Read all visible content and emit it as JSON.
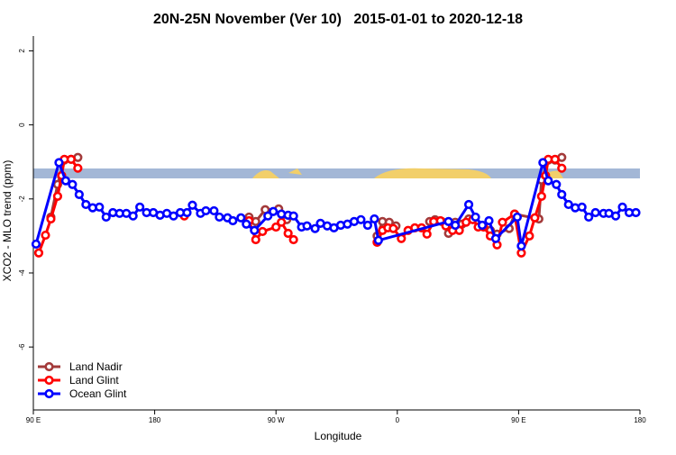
{
  "chart_data": {
    "type": "line",
    "title": "20N-25N November (Ver 10)   2015-01-01 to 2020-12-18",
    "x_label": "Longitude",
    "y_label": "XCO2 - MLO trend (ppm)",
    "xlim": [
      90,
      540
    ],
    "xticks": [
      {
        "value": 90,
        "label": "90 E"
      },
      {
        "value": 180,
        "label": "180"
      },
      {
        "value": 270,
        "label": "90 W"
      },
      {
        "value": 360,
        "label": "0"
      },
      {
        "value": 450,
        "label": "90 E"
      },
      {
        "value": 540,
        "label": "180"
      }
    ],
    "ylim": [
      -7.7,
      2.4
    ],
    "yticks": [
      -6,
      -4,
      -2,
      0,
      2
    ],
    "legend": "bottom-left",
    "series": [
      {
        "name": "Land Nadir",
        "color": "#a33a3a",
        "x": [
          103,
          108,
          113,
          118,
          123,
          160,
          250,
          255,
          262,
          272,
          278,
          300,
          345,
          349,
          354,
          359,
          370,
          384,
          388,
          393,
          398,
          403,
          408,
          413,
          420,
          429,
          434,
          443,
          447,
          465,
          467,
          472,
          477,
          482
        ],
        "values": [
          -2.49,
          -1.61,
          -0.95,
          -0.93,
          -0.88,
          null,
          -2.49,
          -2.61,
          -2.29,
          -2.27,
          -2.56,
          null,
          -3.0,
          -2.61,
          -2.63,
          -2.73,
          null,
          -2.61,
          -2.56,
          -2.61,
          -2.93,
          -2.63,
          -2.68,
          -2.54,
          null,
          -2.85,
          -2.95,
          -2.8,
          -2.41,
          -2.54,
          -1.49,
          -0.95,
          -0.95,
          -0.88
        ]
      },
      {
        "name": "Land Glint",
        "color": "#ff0000",
        "x": [
          94,
          99,
          103,
          108,
          111,
          113,
          118,
          123,
          160,
          202,
          230,
          250,
          255,
          260,
          270,
          274,
          279,
          283,
          300,
          345,
          349,
          353,
          357,
          363,
          368,
          373,
          378,
          382,
          387,
          392,
          396,
          401,
          406,
          411,
          416,
          420,
          424,
          429,
          434,
          438,
          447,
          452,
          458,
          462,
          467,
          470,
          472,
          477,
          482
        ],
        "values": [
          -3.46,
          -2.98,
          -2.54,
          -1.93,
          -1.37,
          -0.93,
          -0.93,
          -1.17,
          null,
          -2.46,
          null,
          -2.59,
          -3.1,
          -2.88,
          -2.76,
          -2.63,
          -2.93,
          -3.1,
          null,
          -3.17,
          -2.85,
          -2.78,
          -2.8,
          -3.07,
          -2.85,
          -2.78,
          -2.78,
          -2.95,
          -2.61,
          -2.59,
          -2.73,
          -2.85,
          -2.85,
          -2.63,
          -2.56,
          -2.76,
          -2.76,
          -3.0,
          -3.24,
          -2.63,
          -2.41,
          -3.46,
          -3.0,
          -2.51,
          -1.93,
          -1.37,
          -0.93,
          -0.93,
          -1.17
        ]
      },
      {
        "name": "Ocean Glint",
        "color": "#0000ff",
        "x": [
          92,
          109,
          114,
          119,
          124,
          129,
          134,
          139,
          144,
          149,
          154,
          159,
          164,
          169,
          174,
          179,
          184,
          189,
          194,
          199,
          204,
          208,
          214,
          218,
          224,
          228,
          234,
          238,
          244,
          248,
          254,
          264,
          268,
          274,
          279,
          283,
          289,
          293,
          299,
          303,
          308,
          313,
          318,
          323,
          328,
          333,
          338,
          343,
          346,
          398,
          403,
          413,
          418,
          423,
          428,
          433,
          449,
          452,
          468,
          472,
          478,
          482,
          487,
          492,
          497,
          502,
          507,
          513,
          517,
          522,
          527,
          532,
          537
        ],
        "values": [
          -3.22,
          -1.02,
          -1.51,
          -1.61,
          -1.88,
          -2.15,
          -2.24,
          -2.22,
          -2.49,
          -2.37,
          -2.39,
          -2.39,
          -2.46,
          -2.22,
          -2.37,
          -2.37,
          -2.44,
          -2.39,
          -2.46,
          -2.37,
          -2.37,
          -2.17,
          -2.39,
          -2.32,
          -2.32,
          -2.49,
          -2.51,
          -2.59,
          -2.51,
          -2.68,
          -2.85,
          -2.46,
          -2.34,
          -2.41,
          -2.44,
          -2.46,
          -2.76,
          -2.73,
          -2.8,
          -2.66,
          -2.73,
          -2.78,
          -2.71,
          -2.68,
          -2.61,
          -2.56,
          -2.71,
          -2.54,
          -3.12,
          -2.61,
          -2.71,
          -2.15,
          -2.49,
          -2.71,
          -2.59,
          -3.07,
          -2.49,
          -3.27,
          -1.02,
          -1.51,
          -1.61,
          -1.88,
          -2.15,
          -2.24,
          -2.22,
          -2.49,
          -2.37,
          -2.39,
          -2.39,
          -2.46,
          -2.22,
          -2.37,
          -2.37
        ]
      }
    ]
  }
}
